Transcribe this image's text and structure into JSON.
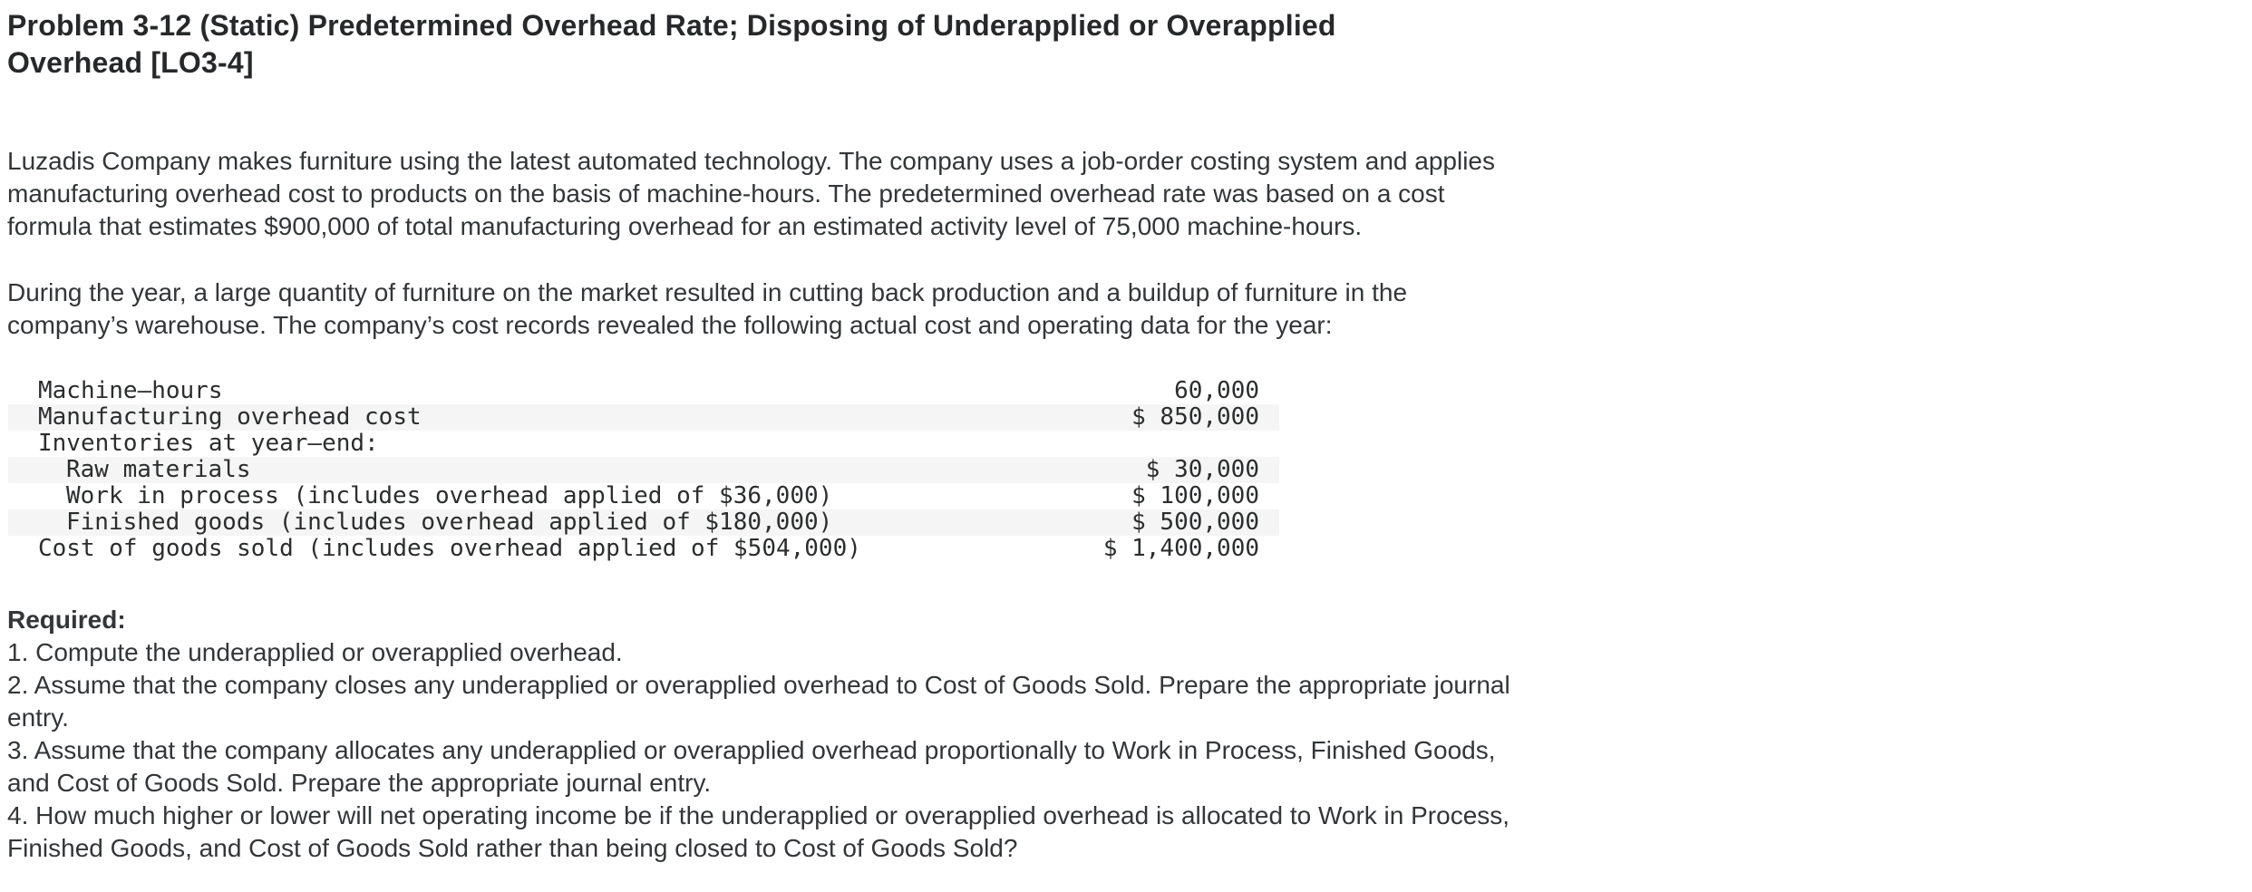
{
  "problem": {
    "title_lines": [
      "Problem 3-12 (Static) Predetermined Overhead Rate; Disposing of Underapplied or Overapplied",
      "Overhead [LO3-4]"
    ],
    "paragraphs": [
      [
        "Luzadis Company makes furniture using the latest automated technology. The company uses a job-order costing system and applies",
        "manufacturing overhead cost to products on the basis of machine-hours. The predetermined overhead rate was based on a cost",
        "formula that estimates $900,000 of total manufacturing overhead for an estimated activity level of 75,000 machine-hours."
      ],
      [
        "During the year, a large quantity of furniture on the market resulted in cutting back production and a buildup of furniture in the",
        "company’s warehouse. The company’s cost records revealed the following actual cost and operating data for the year:"
      ]
    ]
  },
  "cost_table": {
    "rows": [
      {
        "label": "Machine–hours",
        "amount": "60,000",
        "indent": 1,
        "shaded": false
      },
      {
        "label": "Manufacturing overhead cost",
        "amount": "$ 850,000",
        "indent": 1,
        "shaded": true
      },
      {
        "label": "Inventories at year–end:",
        "amount": "",
        "indent": 1,
        "shaded": false
      },
      {
        "label": "Raw materials",
        "amount": "$ 30,000",
        "indent": 2,
        "shaded": true
      },
      {
        "label": "Work in process (includes overhead applied of $36,000)",
        "amount": "$ 100,000",
        "indent": 2,
        "shaded": false
      },
      {
        "label": "Finished goods (includes overhead applied of $180,000)",
        "amount": "$ 500,000",
        "indent": 2,
        "shaded": true
      },
      {
        "label": "Cost of goods sold (includes overhead applied of $504,000)",
        "amount": "$ 1,400,000",
        "indent": 1,
        "shaded": false
      }
    ]
  },
  "required": {
    "heading": "Required:",
    "items": [
      [
        "1. Compute the underapplied or overapplied overhead."
      ],
      [
        "2. Assume that the company closes any underapplied or overapplied overhead to Cost of Goods Sold. Prepare the appropriate journal",
        "entry."
      ],
      [
        "3. Assume that the company allocates any underapplied or overapplied overhead proportionally to Work in Process, Finished Goods,",
        "and Cost of Goods Sold. Prepare the appropriate journal entry."
      ],
      [
        "4. How much higher or lower will net operating income be if the underapplied or overapplied overhead is allocated to Work in Process,",
        "Finished Goods, and Cost of Goods Sold rather than being closed to Cost of Goods Sold?"
      ]
    ]
  },
  "colors": {
    "title_text": "#26282a",
    "body_text": "#333638",
    "table_text": "#2b2d2e",
    "row_shade": "#f5f5f5",
    "page_bg": "#ffffff"
  }
}
